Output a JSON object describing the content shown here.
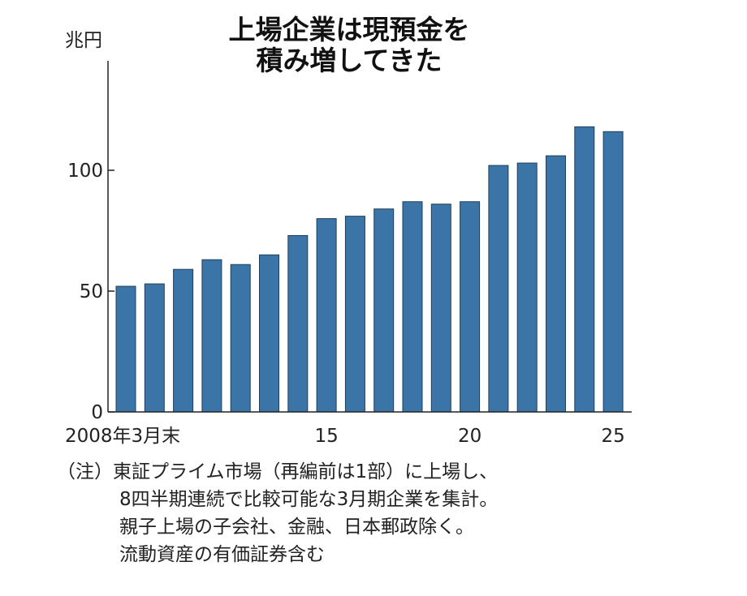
{
  "chart_data": {
    "type": "bar",
    "title": [
      "上場企業は現預金を",
      "積み増してきた"
    ],
    "ylabel": "兆円",
    "ylim": [
      0,
      125
    ],
    "yticks": [
      0,
      50,
      100
    ],
    "grid": false,
    "categories": [
      "2008",
      "2009",
      "2010",
      "2011",
      "2012",
      "2013",
      "2014",
      "2015",
      "2016",
      "2017",
      "2018",
      "2019",
      "2020",
      "2021",
      "2022",
      "2023",
      "2024",
      "2025"
    ],
    "xtick_labels": [
      {
        "category": "2008",
        "label": "2008年3月末"
      },
      {
        "category": "2015",
        "label": "15"
      },
      {
        "category": "2020",
        "label": "20"
      },
      {
        "category": "2025",
        "label": "25"
      }
    ],
    "values": [
      52,
      53,
      59,
      63,
      61,
      65,
      73,
      80,
      81,
      84,
      87,
      86,
      87,
      102,
      103,
      106,
      118,
      116
    ],
    "colors": {
      "bar": "#3b74a7",
      "bar_edge": "#1f3f5c",
      "axis": "#222222"
    }
  },
  "note": [
    "（注）東証プライム市場（再編前は1部）に上場し、",
    "8四半期連続で比較可能な3月期企業を集計。",
    "親子上場の子会社、金融、日本郵政除く。",
    "流動資産の有価証券含む"
  ]
}
